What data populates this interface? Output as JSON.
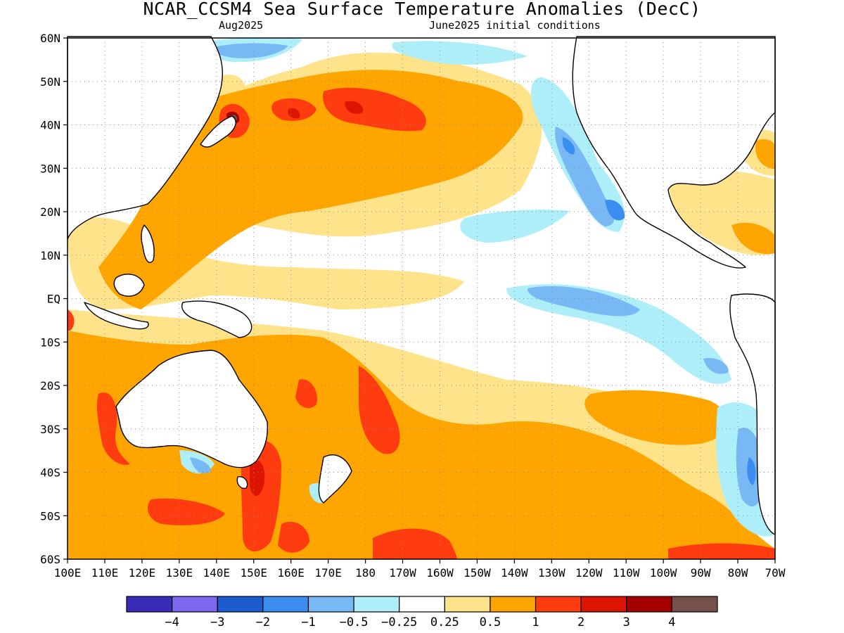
{
  "title": "NCAR_CCSM4 Sea Surface Temperature Anomalies (DecC)",
  "valid_month": "Aug2025",
  "initial_conditions": "June2025 initial conditions",
  "lat_labels": [
    "60N",
    "50N",
    "40N",
    "30N",
    "20N",
    "10N",
    "EQ",
    "10S",
    "20S",
    "30S",
    "40S",
    "50S",
    "60S"
  ],
  "lon_labels": [
    "100E",
    "110E",
    "120E",
    "130E",
    "140E",
    "150E",
    "160E",
    "170E",
    "180",
    "170W",
    "160W",
    "150W",
    "140W",
    "130W",
    "120W",
    "110W",
    "100W",
    "90W",
    "80W",
    "70W"
  ],
  "colorbar": {
    "colors": [
      "#3a2bb8",
      "#7b68ee",
      "#1e5bcf",
      "#3b8ef0",
      "#78b9f5",
      "#aeeef8",
      "#ffffff",
      "#fee38a",
      "#ffa500",
      "#ff3c10",
      "#dc1400",
      "#a50000",
      "#76504a"
    ],
    "labels": [
      "-4",
      "-3",
      "-2",
      "-1",
      "-0.5",
      "-0.25",
      "0.25",
      "0.5",
      "1",
      "2",
      "3",
      "4"
    ]
  }
}
